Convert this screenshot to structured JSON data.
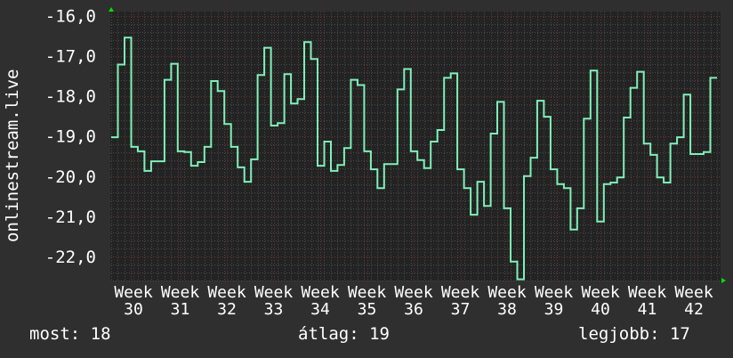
{
  "chart_data": {
    "type": "line",
    "step": true,
    "ylabel": "onlinestream.live",
    "ylim": [
      -22.6,
      -15.9
    ],
    "yticks": [
      "-16,0",
      "-17,0",
      "-18,0",
      "-19,0",
      "-20,0",
      "-21,0",
      "-22,0"
    ],
    "ytick_values": [
      -16,
      -17,
      -18,
      -19,
      -20,
      -21,
      -22
    ],
    "xticks": [
      "Week 30",
      "Week 31",
      "Week 32",
      "Week 33",
      "Week 34",
      "Week 35",
      "Week 36",
      "Week 37",
      "Week 38",
      "Week 39",
      "Week 40",
      "Week 41",
      "Week 42"
    ],
    "grid": true,
    "colors": {
      "line": "#7ff0b8",
      "plot_bg": "#232323",
      "page_bg": "#2f2f2f",
      "grid": "#4a4a4a",
      "major_grid": "#6a3434",
      "arrow": "#00e000"
    },
    "series": [
      {
        "values": [
          -19.03,
          -17.22,
          -16.55,
          -19.27,
          -19.38,
          -19.87,
          -19.63,
          -19.63,
          -17.6,
          -17.2,
          -19.38,
          -19.4,
          -19.74,
          -19.65,
          -19.27,
          -17.63,
          -17.88,
          -18.7,
          -19.27,
          -19.78,
          -20.14,
          -19.58,
          -17.48,
          -16.8,
          -18.74,
          -18.68,
          -17.46,
          -18.19,
          -18.08,
          -16.66,
          -17.08,
          -19.74,
          -19.14,
          -19.87,
          -19.72,
          -19.3,
          -17.6,
          -17.73,
          -19.38,
          -19.83,
          -20.3,
          -19.7,
          -19.7,
          -17.84,
          -17.33,
          -19.38,
          -19.6,
          -19.8,
          -19.14,
          -18.85,
          -17.55,
          -17.44,
          -19.83,
          -20.3,
          -20.96,
          -20.14,
          -20.74,
          -18.94,
          -18.15,
          -20.8,
          -22.13,
          -22.57,
          -20.0,
          -19.54,
          -18.12,
          -18.52,
          -19.83,
          -20.2,
          -20.3,
          -21.33,
          -20.8,
          -18.57,
          -17.37,
          -21.13,
          -20.2,
          -20.16,
          -20.03,
          -18.54,
          -17.8,
          -17.4,
          -19.19,
          -19.47,
          -20.03,
          -20.16,
          -19.19,
          -19.03,
          -17.97,
          -19.45,
          -19.45,
          -19.4,
          -17.55
        ]
      }
    ]
  },
  "footer": {
    "current": "most: 18",
    "average": "átlag: 19",
    "best": "legjobb: 17"
  }
}
